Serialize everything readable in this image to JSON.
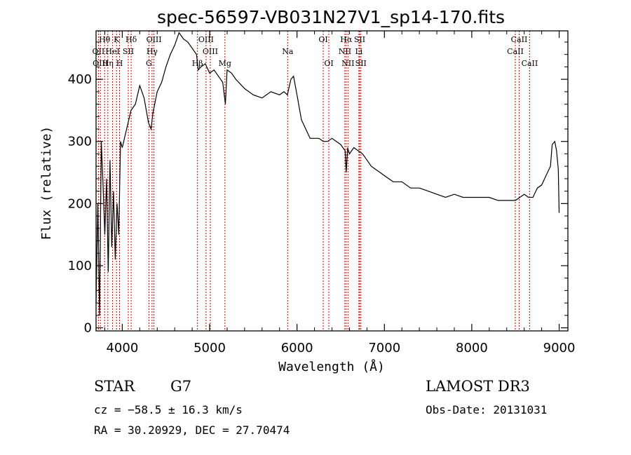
{
  "chart_data": {
    "type": "line",
    "title": "spec-56597-VB031N27V1_sp14-170.fits",
    "xlabel": "Wavelength (Å)",
    "ylabel": "Flux (relative)",
    "xlim": [
      3700,
      9100
    ],
    "ylim": [
      -5,
      478
    ],
    "xticks": [
      4000,
      5000,
      6000,
      7000,
      8000,
      9000
    ],
    "yticks": [
      0,
      100,
      200,
      300,
      400
    ],
    "line_color": "#000000",
    "marker_color": "#cc0000",
    "series": [
      {
        "x": [
          3700,
          3720,
          3740,
          3760,
          3780,
          3800,
          3820,
          3840,
          3860,
          3880,
          3900,
          3920,
          3940,
          3960,
          3980,
          4000,
          4050,
          4100,
          4150,
          4200,
          4250,
          4300,
          4330,
          4350,
          4400,
          4450,
          4500,
          4550,
          4600,
          4650,
          4700,
          4750,
          4800,
          4850,
          4870,
          4900,
          4950,
          5000,
          5050,
          5100,
          5150,
          5180,
          5200,
          5250,
          5300,
          5400,
          5500,
          5600,
          5700,
          5800,
          5850,
          5890,
          5930,
          5960,
          6000,
          6050,
          6100,
          6150,
          6200,
          6250,
          6300,
          6350,
          6400,
          6450,
          6500,
          6550,
          6563,
          6580,
          6600,
          6650,
          6700,
          6750,
          6800,
          6850,
          6900,
          6950,
          7000,
          7050,
          7100,
          7200,
          7300,
          7400,
          7500,
          7600,
          7700,
          7800,
          7900,
          8000,
          8100,
          8200,
          8300,
          8400,
          8500,
          8550,
          8600,
          8650,
          8700,
          8750,
          8800,
          8850,
          8900,
          8920,
          8950,
          8970,
          8990,
          9000
        ],
        "y": [
          40,
          200,
          20,
          300,
          230,
          150,
          240,
          90,
          270,
          130,
          220,
          110,
          200,
          150,
          300,
          290,
          320,
          350,
          360,
          390,
          370,
          330,
          320,
          345,
          380,
          395,
          420,
          440,
          455,
          475,
          465,
          460,
          450,
          440,
          415,
          420,
          425,
          410,
          415,
          405,
          395,
          360,
          415,
          410,
          400,
          385,
          375,
          370,
          380,
          375,
          380,
          375,
          400,
          405,
          375,
          335,
          320,
          305,
          305,
          305,
          300,
          300,
          305,
          300,
          295,
          285,
          250,
          290,
          280,
          290,
          285,
          280,
          270,
          260,
          255,
          250,
          245,
          240,
          235,
          235,
          225,
          225,
          220,
          215,
          210,
          215,
          210,
          210,
          210,
          210,
          205,
          205,
          205,
          210,
          215,
          210,
          210,
          225,
          230,
          245,
          260,
          295,
          300,
          285,
          255,
          185
        ]
      }
    ],
    "spectral_lines": [
      {
        "label": "Hθ",
        "wave": 3798,
        "row": 0
      },
      {
        "label": "OII",
        "wave": 3727,
        "row": 1
      },
      {
        "label": "OIII",
        "wave": 3750,
        "row": 2
      },
      {
        "label": "K",
        "wave": 3934,
        "row": 0
      },
      {
        "label": "HeI",
        "wave": 3889,
        "row": 1
      },
      {
        "label": "Hη",
        "wave": 3835,
        "row": 2
      },
      {
        "label": "SII",
        "wave": 4069,
        "row": 1
      },
      {
        "label": "H",
        "wave": 3969,
        "row": 2
      },
      {
        "label": "Hδ",
        "wave": 4102,
        "row": 0
      },
      {
        "label": "OIII",
        "wave": 4363,
        "row": 0
      },
      {
        "label": "Hγ",
        "wave": 4341,
        "row": 1
      },
      {
        "label": "G",
        "wave": 4305,
        "row": 2
      },
      {
        "label": "OIII",
        "wave": 4959,
        "row": 0
      },
      {
        "label": "OIII",
        "wave": 5007,
        "row": 1
      },
      {
        "label": "Hβ",
        "wave": 4861,
        "row": 2
      },
      {
        "label": "Mg",
        "wave": 5175,
        "row": 2
      },
      {
        "label": "Na",
        "wave": 5893,
        "row": 1
      },
      {
        "label": "OI",
        "wave": 6300,
        "row": 0
      },
      {
        "label": "OI",
        "wave": 6364,
        "row": 2
      },
      {
        "label": "Hα",
        "wave": 6563,
        "row": 0
      },
      {
        "label": "SII",
        "wave": 6717,
        "row": 0
      },
      {
        "label": "NII",
        "wave": 6548,
        "row": 1
      },
      {
        "label": "Li",
        "wave": 6708,
        "row": 1
      },
      {
        "label": "NII",
        "wave": 6583,
        "row": 2
      },
      {
        "label": "SII",
        "wave": 6731,
        "row": 2
      },
      {
        "label": "CaII",
        "wave": 8542,
        "row": 0
      },
      {
        "label": "CaII",
        "wave": 8498,
        "row": 1
      },
      {
        "label": "CaII",
        "wave": 8662,
        "row": 2
      }
    ]
  },
  "info": {
    "class_label": "STAR",
    "subclass": "G7",
    "survey": "LAMOST DR3",
    "velocity": "cz = −58.5 ± 16.3 km/s",
    "obs_date": "Obs-Date: 20131031",
    "coords": "RA =  30.20929, DEC =  27.70474"
  }
}
